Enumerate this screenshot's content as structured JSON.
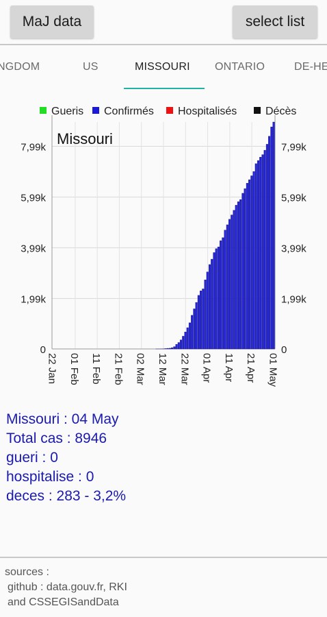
{
  "toolbar": {
    "maj_label": "MaJ data",
    "select_label": "select list"
  },
  "tabs": [
    {
      "label": "NGDOM",
      "active": false
    },
    {
      "label": "US",
      "active": false
    },
    {
      "label": "MISSOURI",
      "active": true
    },
    {
      "label": "ONTARIO",
      "active": false
    },
    {
      "label": "DE-HE",
      "active": false
    }
  ],
  "accent_color": "#1fb3a3",
  "chart_data": {
    "type": "bar",
    "title": "Missouri",
    "legend": [
      {
        "name": "Gueris",
        "color": "#22dd22"
      },
      {
        "name": "Confirmés",
        "color": "#1a1ad6"
      },
      {
        "name": "Hospitalisés",
        "color": "#ee1111"
      },
      {
        "name": "Décès",
        "color": "#111111"
      }
    ],
    "legend_placement": "top-center",
    "y_ticks": [
      "0",
      "1,99k",
      "3,99k",
      "5,99k",
      "7,99k"
    ],
    "y_tick_values": [
      0,
      1990,
      3990,
      5990,
      7990
    ],
    "ylim": [
      0,
      8946
    ],
    "x_ticks": [
      "22 Jan",
      "01 Feb",
      "11 Feb",
      "21 Feb",
      "02 Mar",
      "12 Mar",
      "22 Mar",
      "01 Apr",
      "11 Apr",
      "21 Apr",
      "01 May"
    ],
    "grid": true,
    "series": [
      {
        "name": "Confirmés",
        "color": "#2424d8",
        "x_start": "22 Jan",
        "x_end": "04 May",
        "values": [
          0,
          0,
          0,
          0,
          0,
          0,
          0,
          0,
          0,
          0,
          0,
          0,
          0,
          0,
          0,
          0,
          0,
          0,
          0,
          0,
          0,
          0,
          0,
          0,
          0,
          0,
          0,
          0,
          0,
          0,
          0,
          0,
          0,
          0,
          0,
          0,
          0,
          0,
          0,
          0,
          0,
          0,
          0,
          0,
          0,
          0,
          0,
          1,
          1,
          2,
          5,
          15,
          24,
          28,
          50,
          90,
          180,
          255,
          356,
          502,
          670,
          838,
          1031,
          1327,
          1581,
          1834,
          2113,
          2291,
          2367,
          2722,
          3037,
          3327,
          3539,
          3799,
          3954,
          4024,
          4269,
          4388,
          4686,
          4895,
          5111,
          5283,
          5467,
          5667,
          5807,
          5890,
          6137,
          6321,
          6535,
          6672,
          6826,
          6997,
          7303,
          7425,
          7562,
          7660,
          7835,
          8070,
          8386,
          8754,
          8946
        ]
      }
    ],
    "has_right_axis": true
  },
  "info": {
    "line1": "Missouri : 04 May",
    "line2": "Total cas : 8946",
    "line3": "gueri : 0",
    "line4": "hospitalise : 0",
    "line5": "deces : 283 - 3,2%"
  },
  "footer": {
    "line1": "sources :",
    "line2": "github : data.gouv.fr, RKI",
    "line3": "and CSSEGISandData"
  }
}
